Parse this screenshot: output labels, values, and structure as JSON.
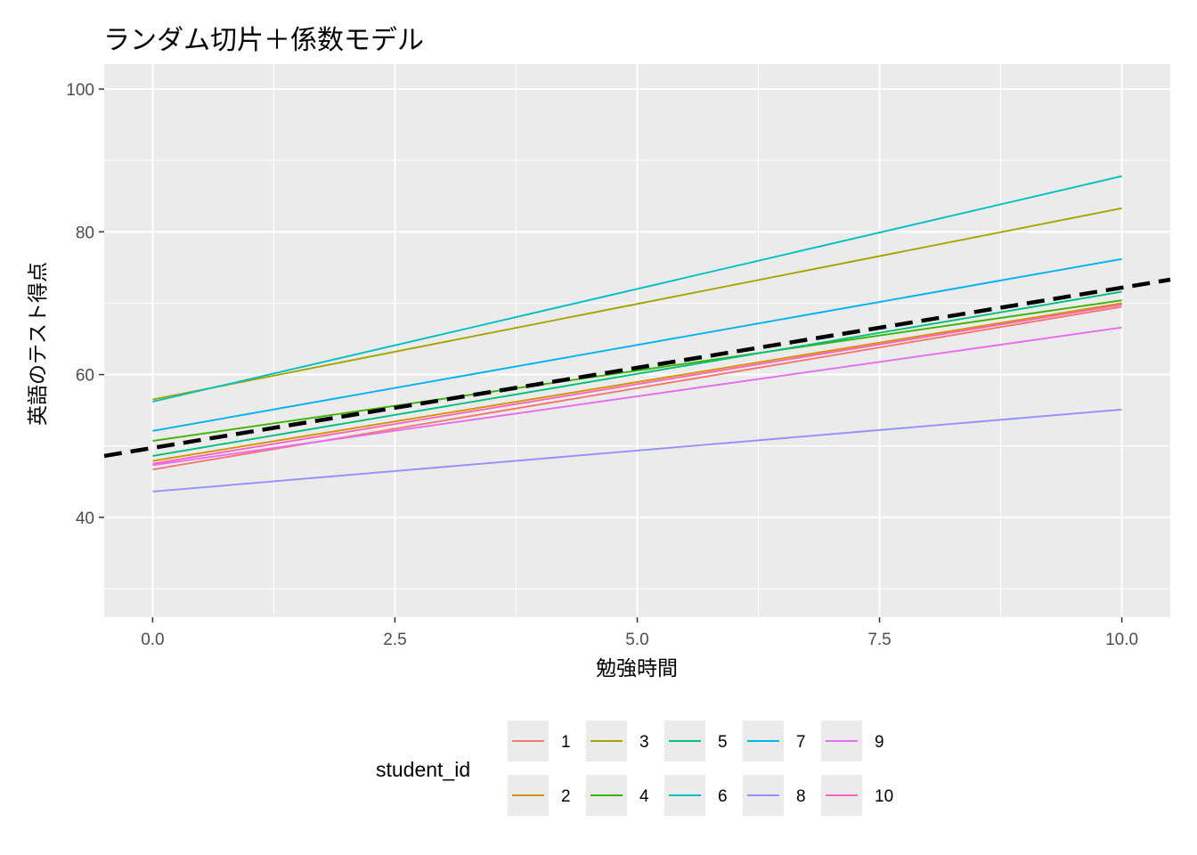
{
  "chart_data": {
    "type": "line",
    "title": "ランダム切片＋係数モデル",
    "xlabel": "勉強時間",
    "ylabel": "英語のテスト得点",
    "xlim": [
      -0.5,
      10.5
    ],
    "ylim": [
      26,
      103.5
    ],
    "x_ticks": [
      0,
      2.5,
      5,
      7.5,
      10
    ],
    "x_tick_labels": [
      "0.0",
      "2.5",
      "5.0",
      "7.5",
      "10.0"
    ],
    "y_ticks": [
      40,
      60,
      80,
      100
    ],
    "y_tick_labels": [
      "40",
      "60",
      "80",
      "100"
    ],
    "grid": true,
    "legend": {
      "title": "student_id",
      "position": "bottom"
    },
    "series": [
      {
        "name": "1",
        "color": "#F8766D",
        "x": [
          0,
          10
        ],
        "y": [
          46.7,
          69.5
        ]
      },
      {
        "name": "2",
        "color": "#D89000",
        "x": [
          0,
          10
        ],
        "y": [
          47.9,
          70.0
        ]
      },
      {
        "name": "3",
        "color": "#A3A500",
        "x": [
          0,
          10
        ],
        "y": [
          56.5,
          83.3
        ]
      },
      {
        "name": "4",
        "color": "#39B600",
        "x": [
          0,
          10
        ],
        "y": [
          50.7,
          70.4
        ]
      },
      {
        "name": "5",
        "color": "#00BF7D",
        "x": [
          0,
          10
        ],
        "y": [
          48.6,
          71.6
        ]
      },
      {
        "name": "6",
        "color": "#00BFC4",
        "x": [
          0,
          10
        ],
        "y": [
          56.2,
          87.8
        ]
      },
      {
        "name": "7",
        "color": "#00B0F6",
        "x": [
          0,
          10
        ],
        "y": [
          52.1,
          76.2
        ]
      },
      {
        "name": "8",
        "color": "#9590FF",
        "x": [
          0,
          10
        ],
        "y": [
          43.6,
          55.1
        ]
      },
      {
        "name": "9",
        "color": "#E76BF3",
        "x": [
          0,
          10
        ],
        "y": [
          47.3,
          66.6
        ]
      },
      {
        "name": "10",
        "color": "#FF62BC",
        "x": [
          0,
          10
        ],
        "y": [
          47.5,
          69.8
        ]
      }
    ],
    "overall_line": {
      "style": "dashed",
      "color": "#000000",
      "x": [
        -0.5,
        10.5
      ],
      "y": [
        48.6,
        73.3
      ]
    }
  }
}
